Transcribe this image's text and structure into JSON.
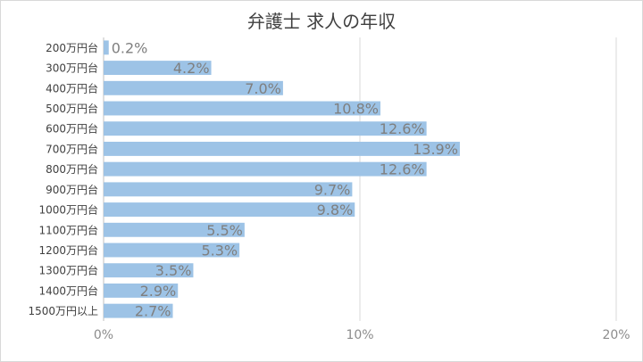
{
  "chart_data": {
    "type": "bar",
    "orientation": "horizontal",
    "title": "弁護士 求人の年収",
    "categories": [
      "200万円台",
      "300万円台",
      "400万円台",
      "500万円台",
      "600万円台",
      "700万円台",
      "800万円台",
      "900万円台",
      "1000万円台",
      "1100万円台",
      "1200万円台",
      "1300万円台",
      "1400万円台",
      "1500万円以上"
    ],
    "values": [
      0.2,
      4.2,
      7.0,
      10.8,
      12.6,
      13.9,
      12.6,
      9.7,
      9.8,
      5.5,
      5.3,
      3.5,
      2.9,
      2.7
    ],
    "data_labels": [
      "0.2%",
      "4.2%",
      "7.0%",
      "10.8%",
      "12.6%",
      "13.9%",
      "12.6%",
      "9.7%",
      "9.8%",
      "5.5%",
      "5.3%",
      "3.5%",
      "2.9%",
      "2.7%"
    ],
    "xlim": [
      0,
      20
    ],
    "xticks": [
      0,
      10,
      20
    ],
    "xtick_labels": [
      "0%",
      "10%",
      "20%"
    ],
    "xlabel": "",
    "ylabel": "",
    "grid": "vertical",
    "legend": "none",
    "bar_color": "#9dc3e6",
    "label_color": "#7f7f7f",
    "grid_color": "#d9d9d9"
  }
}
